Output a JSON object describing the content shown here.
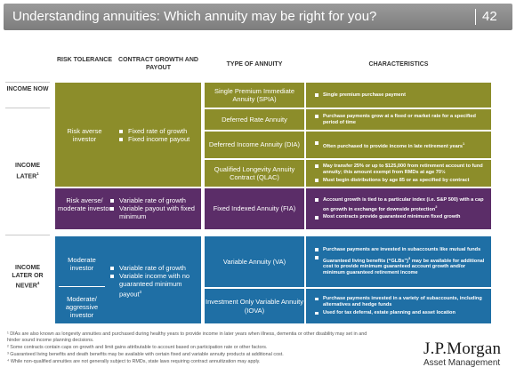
{
  "header": {
    "title": "Understanding annuities: Which annuity may be right for you?",
    "page_number": "42"
  },
  "columns": {
    "risk_tolerance": "RISK TOLERANCE",
    "contract_growth": "CONTRACT GROWTH AND PAYOUT",
    "type_of_annuity": "TYPE OF ANNUITY",
    "characteristics": "CHARACTERISTICS"
  },
  "row_labels": {
    "income_now": "INCOME NOW",
    "income_later": "INCOME LATER",
    "income_later_sup": "1",
    "income_later_or_never": "INCOME LATER OR NEVER",
    "income_later_or_never_sup": "4"
  },
  "groups": {
    "olive": {
      "risk": "Risk averse investor",
      "growth": [
        "Fixed rate of growth",
        "Fixed income payout"
      ]
    },
    "purple": {
      "risk": "Risk averse/ moderate investor",
      "growth": [
        "Variable rate of growth",
        "Variable payout with fixed minimum"
      ]
    },
    "blue_top": {
      "risk": "Moderate investor"
    },
    "blue_bottom": {
      "risk": "Moderate/ aggressive investor"
    },
    "blue_growth": [
      "Variable rate of growth",
      "Variable income with no guaranteed minimum payout"
    ],
    "blue_growth_sup": "3"
  },
  "annuities": [
    {
      "type": "Single Premium Immediate Annuity (SPIA)",
      "characteristics": [
        "Single premium purchase payment"
      ]
    },
    {
      "type": "Deferred Rate Annuity",
      "characteristics": [
        "Purchase payments grow at a fixed or market rate for a specified period of time"
      ]
    },
    {
      "type": "Deferred Income Annuity (DIA)",
      "characteristics": [
        "Often purchased to provide income in late retirement years"
      ],
      "char_sup": "1"
    },
    {
      "type": "Qualified Longevity Annuity Contract (QLAC)",
      "characteristics": [
        "May transfer 25% or up to $125,000 from retirement account to fund annuity; this amount exempt from RMDs at age 70½",
        "Must begin distributions by age 85 or as specified by contract"
      ]
    },
    {
      "type": "Fixed Indexed Annuity (FIA)",
      "characteristics": [
        "Account growth is tied to a particular index (i.e. S&P 500)  with a cap on growth in exchange for downside protection",
        "Most contracts provide guaranteed minimum fixed growth"
      ],
      "char_sup": "2"
    },
    {
      "type": "Variable Annuity (VA)",
      "characteristics": [
        "Purchase payments are invested in subaccounts like mutual funds",
        "Guaranteed living benefits (“GLBs”) may be available for additional cost to provide minimum guaranteed account growth and/or minimum guaranteed retirement income"
      ],
      "char_sup": "3"
    },
    {
      "type": "Investment Only Variable Annuity (IOVA)",
      "characteristics": [
        "Purchase payments invested in a variety of subaccounts, including alternatives and hedge funds",
        "Used for tax deferral, estate planning and asset location"
      ]
    }
  ],
  "footnotes": [
    "¹ DIAs are also known as longevity annuities and purchased during healthy years to provide income in later years when illness, dementia or other disability may set in and hinder sound income planning decisions.",
    "² Some contracts contain caps on growth and limit gains attributable to account based on participation rate or other factors.",
    "³ Guaranteed living benefits and death benefits may be available with certain fixed and variable annuity products at additional cost.",
    "⁴ While non-qualified annuities are not generally subject to RMDs, state laws requiring contract annuitization may apply."
  ],
  "logo": {
    "main": "J.P.Morgan",
    "sub": "Asset Management"
  },
  "colors": {
    "olive": "#8c8d2a",
    "purple": "#5b2d68",
    "blue": "#1f6fa5",
    "title_bar": "#8a8a8a"
  }
}
